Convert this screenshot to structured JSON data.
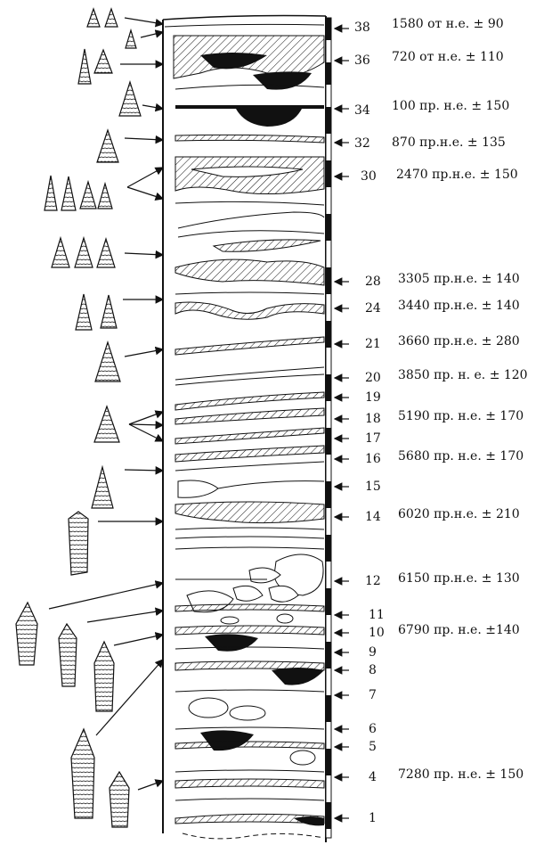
{
  "layers": [
    {
      "number": "38",
      "date": "1580 от н.е. ± 90"
    },
    {
      "number": "36",
      "date": "720 от н.е. ± 110"
    },
    {
      "number": "34",
      "date": "100 пр. н.е. ± 150"
    },
    {
      "number": "32",
      "date": "870 пр.н.е. ± 135"
    },
    {
      "number": "30",
      "date": "2470 пр.н.е. ± 150"
    },
    {
      "number": "28",
      "date": "3305 пр.н.е. ± 140"
    },
    {
      "number": "24",
      "date": "3440 пр.н.е. ± 140"
    },
    {
      "number": "21",
      "date": "3660 пр.н.е. ± 280"
    },
    {
      "number": "20",
      "date": "3850 пр. н. е. ± 120"
    },
    {
      "number": "19",
      "date": ""
    },
    {
      "number": "18",
      "date": "5190 пр. н.е. ± 170"
    },
    {
      "number": "17",
      "date": ""
    },
    {
      "number": "16",
      "date": "5680 пр. н.е. ± 170"
    },
    {
      "number": "15",
      "date": ""
    },
    {
      "number": "14",
      "date": "6020 пр.н.е. ± 210"
    },
    {
      "number": "12",
      "date": "6150 пр.н.е. ± 130"
    },
    {
      "number": "11",
      "date": ""
    },
    {
      "number": "10",
      "date": "6790 пр. н.е. ±140"
    },
    {
      "number": "9",
      "date": ""
    },
    {
      "number": "8",
      "date": ""
    },
    {
      "number": "7",
      "date": ""
    },
    {
      "number": "6",
      "date": ""
    },
    {
      "number": "5",
      "date": ""
    },
    {
      "number": "4",
      "date": "7280 пр. н.е. ± 150"
    },
    {
      "number": "1",
      "date": ""
    }
  ],
  "colors": {
    "ink": "#111111",
    "paper": "#ffffff"
  },
  "icons": [
    "projectile-point-icon",
    "arrow-icon",
    "scale-bar-icon"
  ]
}
